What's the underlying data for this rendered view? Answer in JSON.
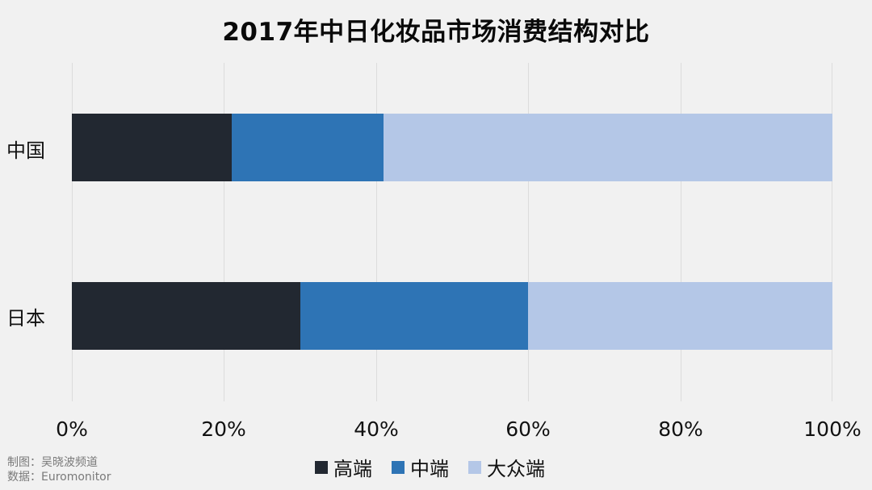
{
  "chart_data": {
    "type": "bar",
    "orientation": "horizontal",
    "stacked": "percent",
    "title": "2017年中日化妆品市场消费结构对比",
    "categories": [
      "中国",
      "日本"
    ],
    "series": [
      {
        "name": "高端",
        "color": "#222831",
        "values": [
          21,
          30
        ]
      },
      {
        "name": "中端",
        "color": "#2e74b5",
        "values": [
          20,
          30
        ]
      },
      {
        "name": "大众端",
        "color": "#b4c7e7",
        "values": [
          59,
          40
        ]
      }
    ],
    "xlabel": "",
    "ylabel": "",
    "xlim": [
      0,
      100
    ],
    "xticks": [
      "0%",
      "20%",
      "40%",
      "60%",
      "80%",
      "100%"
    ],
    "grid": true,
    "legend_position": "bottom"
  },
  "credits": {
    "line1": "制图：吴晓波频道",
    "line2": "数据：Euromonitor"
  }
}
